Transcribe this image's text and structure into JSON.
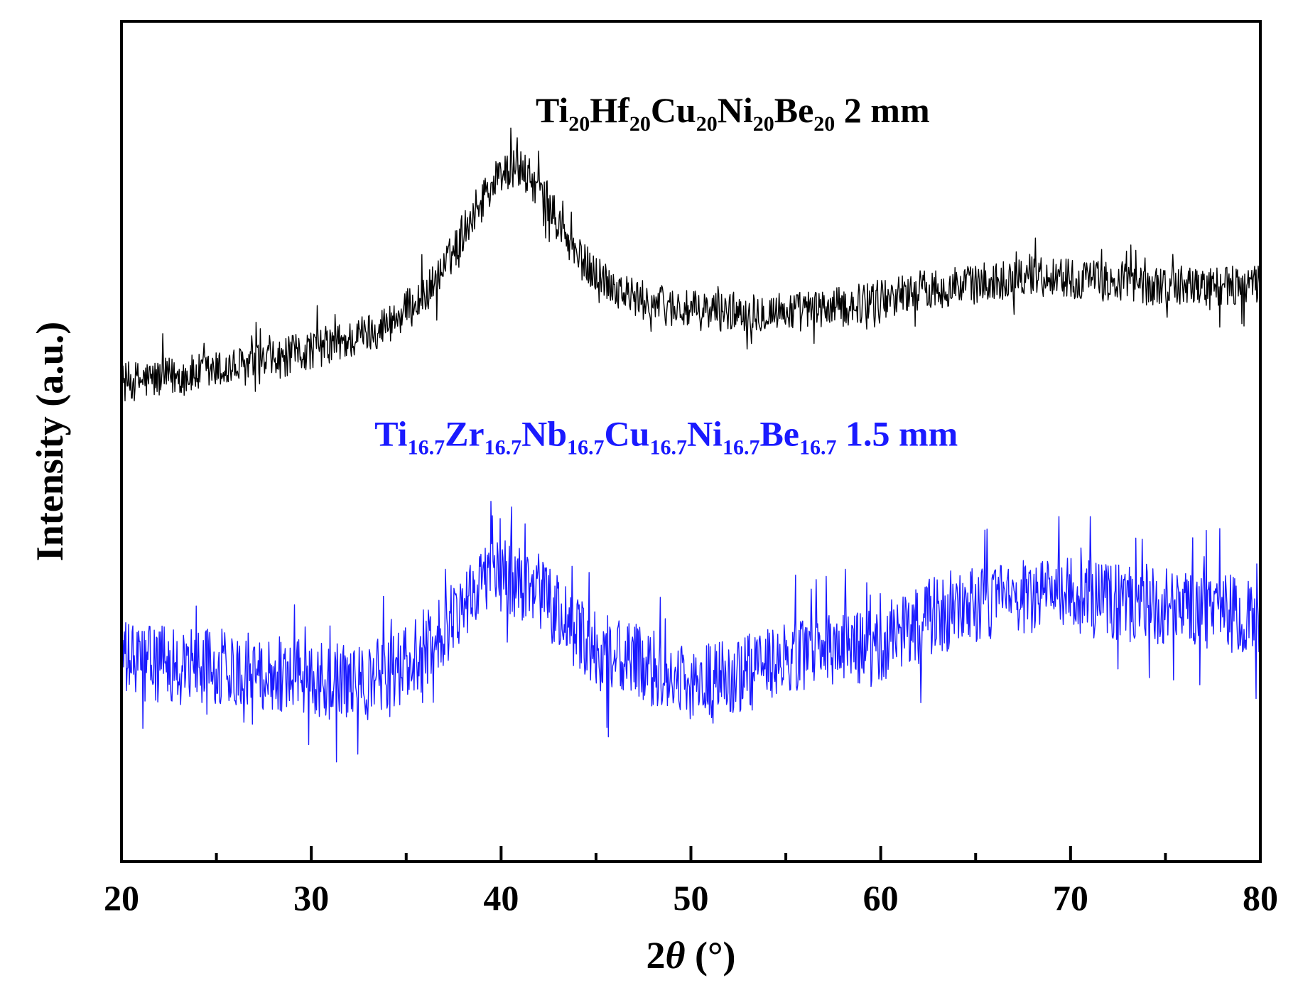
{
  "chart_data": {
    "type": "line",
    "xlabel_prefix": "2",
    "xlabel_symbol": "θ",
    "xlabel_suffix": " (°)",
    "ylabel": "Intensity (a.u.)",
    "xlim": [
      20,
      80
    ],
    "ylim": [
      0,
      100
    ],
    "x_ticks": [
      20,
      30,
      40,
      50,
      60,
      70,
      80
    ],
    "x_minor_ticks": [
      25,
      35,
      45,
      55,
      65,
      75
    ],
    "y_tick_labels": false,
    "grid": false,
    "series": [
      {
        "name_parts": [
          {
            "t": "Ti"
          },
          {
            "t": "20",
            "sub": true
          },
          {
            "t": "Hf"
          },
          {
            "t": "20",
            "sub": true
          },
          {
            "t": "Cu"
          },
          {
            "t": "20",
            "sub": true
          },
          {
            "t": "Ni"
          },
          {
            "t": "20",
            "sub": true
          },
          {
            "t": "Be"
          },
          {
            "t": "20",
            "sub": true
          },
          {
            "t": "  2 mm"
          }
        ],
        "color": "#000000",
        "label_anchor": [
          52.2,
          88
        ],
        "x": [
          20,
          22,
          24,
          26,
          28,
          30,
          32,
          34,
          35,
          36,
          37,
          38,
          39,
          40,
          41,
          42,
          43,
          44,
          45,
          46,
          47,
          48,
          50,
          52,
          54,
          56,
          58,
          60,
          62,
          64,
          66,
          68,
          70,
          72,
          74,
          76,
          78,
          80
        ],
        "values": [
          57,
          57.5,
          58,
          58.8,
          59.5,
          61,
          62,
          64,
          65.5,
          67.5,
          70.5,
          75,
          79,
          82,
          82.5,
          80,
          76,
          72,
          70,
          68.5,
          67,
          66.5,
          65.5,
          65.5,
          65.5,
          65.5,
          66,
          67,
          68,
          68.5,
          69,
          70,
          69.5,
          69,
          68.5,
          68.5,
          68.5,
          68.5
        ],
        "noise": 2.4
      },
      {
        "name_parts": [
          {
            "t": "Ti"
          },
          {
            "t": "16.7",
            "sub": true
          },
          {
            "t": "Zr"
          },
          {
            "t": "16.7",
            "sub": true
          },
          {
            "t": "Nb"
          },
          {
            "t": "16.7",
            "sub": true
          },
          {
            "t": "Cu"
          },
          {
            "t": "16.7",
            "sub": true
          },
          {
            "t": "Ni"
          },
          {
            "t": "16.7",
            "sub": true
          },
          {
            "t": "Be"
          },
          {
            "t": "16.7",
            "sub": true
          },
          {
            "t": "  1.5 mm"
          }
        ],
        "color": "#1a1aff",
        "label_anchor": [
          48.7,
          49.5
        ],
        "x": [
          20,
          22,
          24,
          26,
          28,
          30,
          32,
          33,
          34,
          35,
          36,
          37,
          38,
          39,
          40,
          41,
          42,
          43,
          44,
          45,
          46,
          48,
          50,
          52,
          54,
          56,
          58,
          60,
          62,
          64,
          66,
          68,
          70,
          72,
          74,
          76,
          78,
          80
        ],
        "values": [
          24,
          23.5,
          23.5,
          23,
          22.5,
          22,
          21,
          21.5,
          22.5,
          23.5,
          25,
          27.5,
          31,
          33.5,
          34,
          33.5,
          32,
          29.5,
          27,
          25,
          24.5,
          23,
          21,
          22,
          23,
          25,
          25,
          26,
          28,
          30,
          31,
          31.5,
          31.5,
          31,
          30.5,
          30,
          29.5,
          29
        ],
        "noise": 4.6
      }
    ]
  },
  "colors": {
    "axis": "#000000"
  }
}
